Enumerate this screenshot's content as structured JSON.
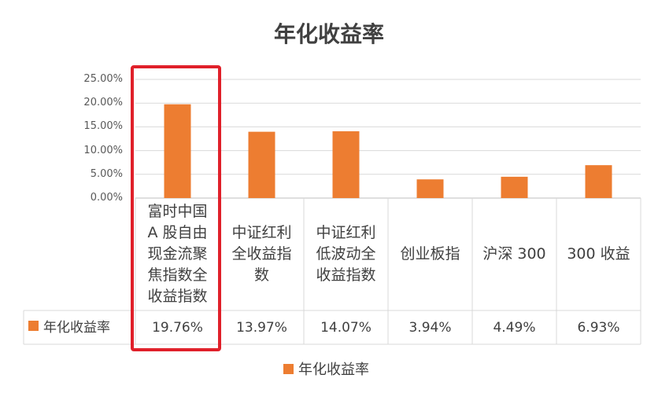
{
  "chart_data": {
    "type": "bar",
    "title": "年化收益率",
    "categories": [
      "富时中国A股自由现金流聚焦指数全收益指数",
      "中证红利全收益指数",
      "中证红利低波动全收益指数",
      "创业板指",
      "沪深 300",
      "300 收益"
    ],
    "category_lines": [
      [
        "富时中国",
        "A 股自由",
        "现金流聚",
        "焦指数全",
        "收益指数"
      ],
      [
        "中证红利",
        "全收益指",
        "数"
      ],
      [
        "中证红利",
        "低波动全",
        "收益指数"
      ],
      [
        "创业板指"
      ],
      [
        "沪深 300"
      ],
      [
        "300 收益"
      ]
    ],
    "series": [
      {
        "name": "年化收益率",
        "values": [
          19.76,
          13.97,
          14.07,
          3.94,
          4.49,
          6.93
        ],
        "color": "#ED7D31"
      }
    ],
    "value_labels": [
      "19.76%",
      "13.97%",
      "14.07%",
      "3.94%",
      "4.49%",
      "6.93%"
    ],
    "ylim": [
      0,
      25
    ],
    "yticks": [
      "0.00%",
      "5.00%",
      "10.00%",
      "15.00%",
      "20.00%",
      "25.00%"
    ],
    "grid": true,
    "data_table": true,
    "legend": "bottom",
    "highlighted_category": 0,
    "highlight_color": "#E0202A"
  }
}
